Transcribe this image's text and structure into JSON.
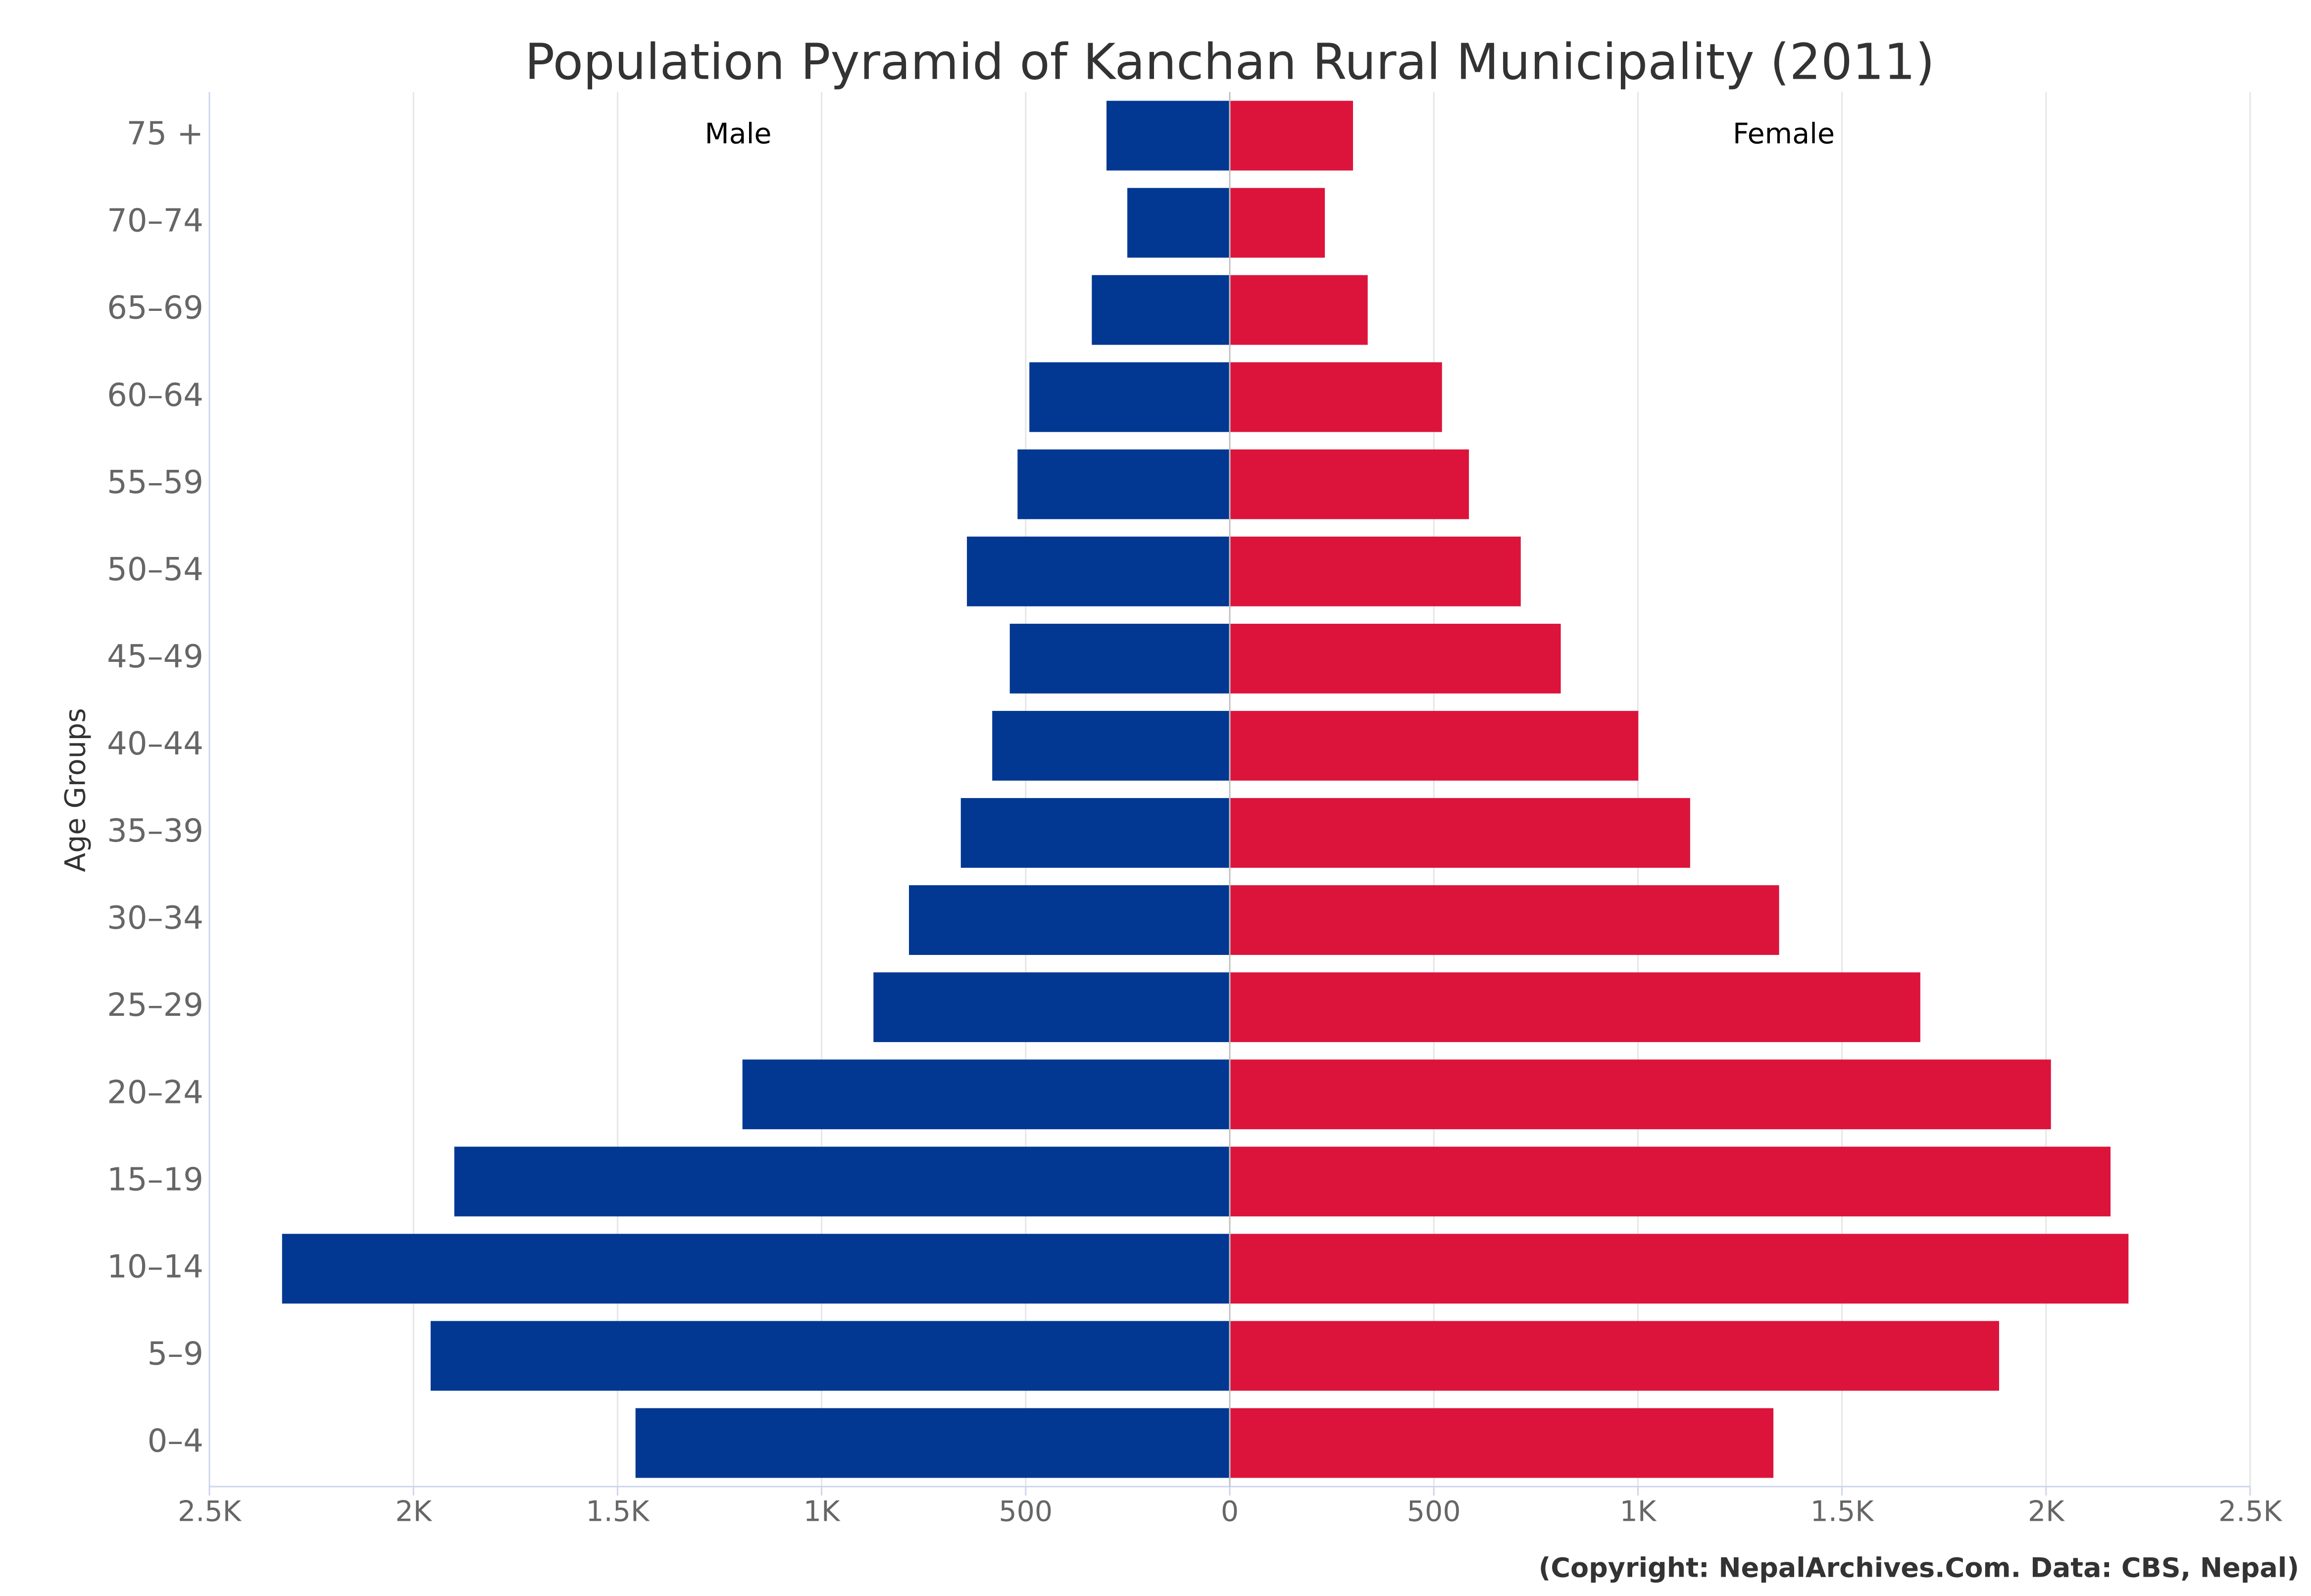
{
  "chart_data": {
    "type": "pyramid",
    "title": "Population Pyramid of Kanchan Rural Municipality (2011)",
    "y_label": "Age Groups",
    "credit": "(Copyright: NepalArchives.Com. Data: CBS, Nepal)",
    "categories": [
      "75 +",
      "70–74",
      "65–69",
      "60–64",
      "55–59",
      "50–54",
      "45–49",
      "40–44",
      "35–39",
      "30–34",
      "25–29",
      "20–24",
      "15–19",
      "10–14",
      "5–9",
      "0–4"
    ],
    "series": [
      {
        "name": "Male",
        "color": "#023892",
        "values": [
          -302,
          -251,
          -338,
          -491,
          -520,
          -644,
          -539,
          -582,
          -659,
          -786,
          -873,
          -1194,
          -1900,
          -2322,
          -1958,
          -1456
        ]
      },
      {
        "name": "Female",
        "color": "#dc143c",
        "values": [
          302,
          233,
          338,
          520,
          586,
          713,
          811,
          1001,
          1128,
          1346,
          1692,
          2012,
          2158,
          2202,
          1885,
          1332
        ]
      }
    ],
    "xlim": [
      -2500,
      2500
    ],
    "xticks": [
      {
        "value": -2500,
        "label": "2.5K"
      },
      {
        "value": -2000,
        "label": "2K"
      },
      {
        "value": -1500,
        "label": "1.5K"
      },
      {
        "value": -1000,
        "label": "1K"
      },
      {
        "value": -500,
        "label": "500"
      },
      0,
      500,
      {
        "value": 1000,
        "label": "1K"
      },
      {
        "value": 1500,
        "label": "1.5K"
      },
      {
        "value": 2000,
        "label": "2K"
      },
      {
        "value": 2500,
        "label": "2.5K"
      }
    ],
    "grid": true
  }
}
